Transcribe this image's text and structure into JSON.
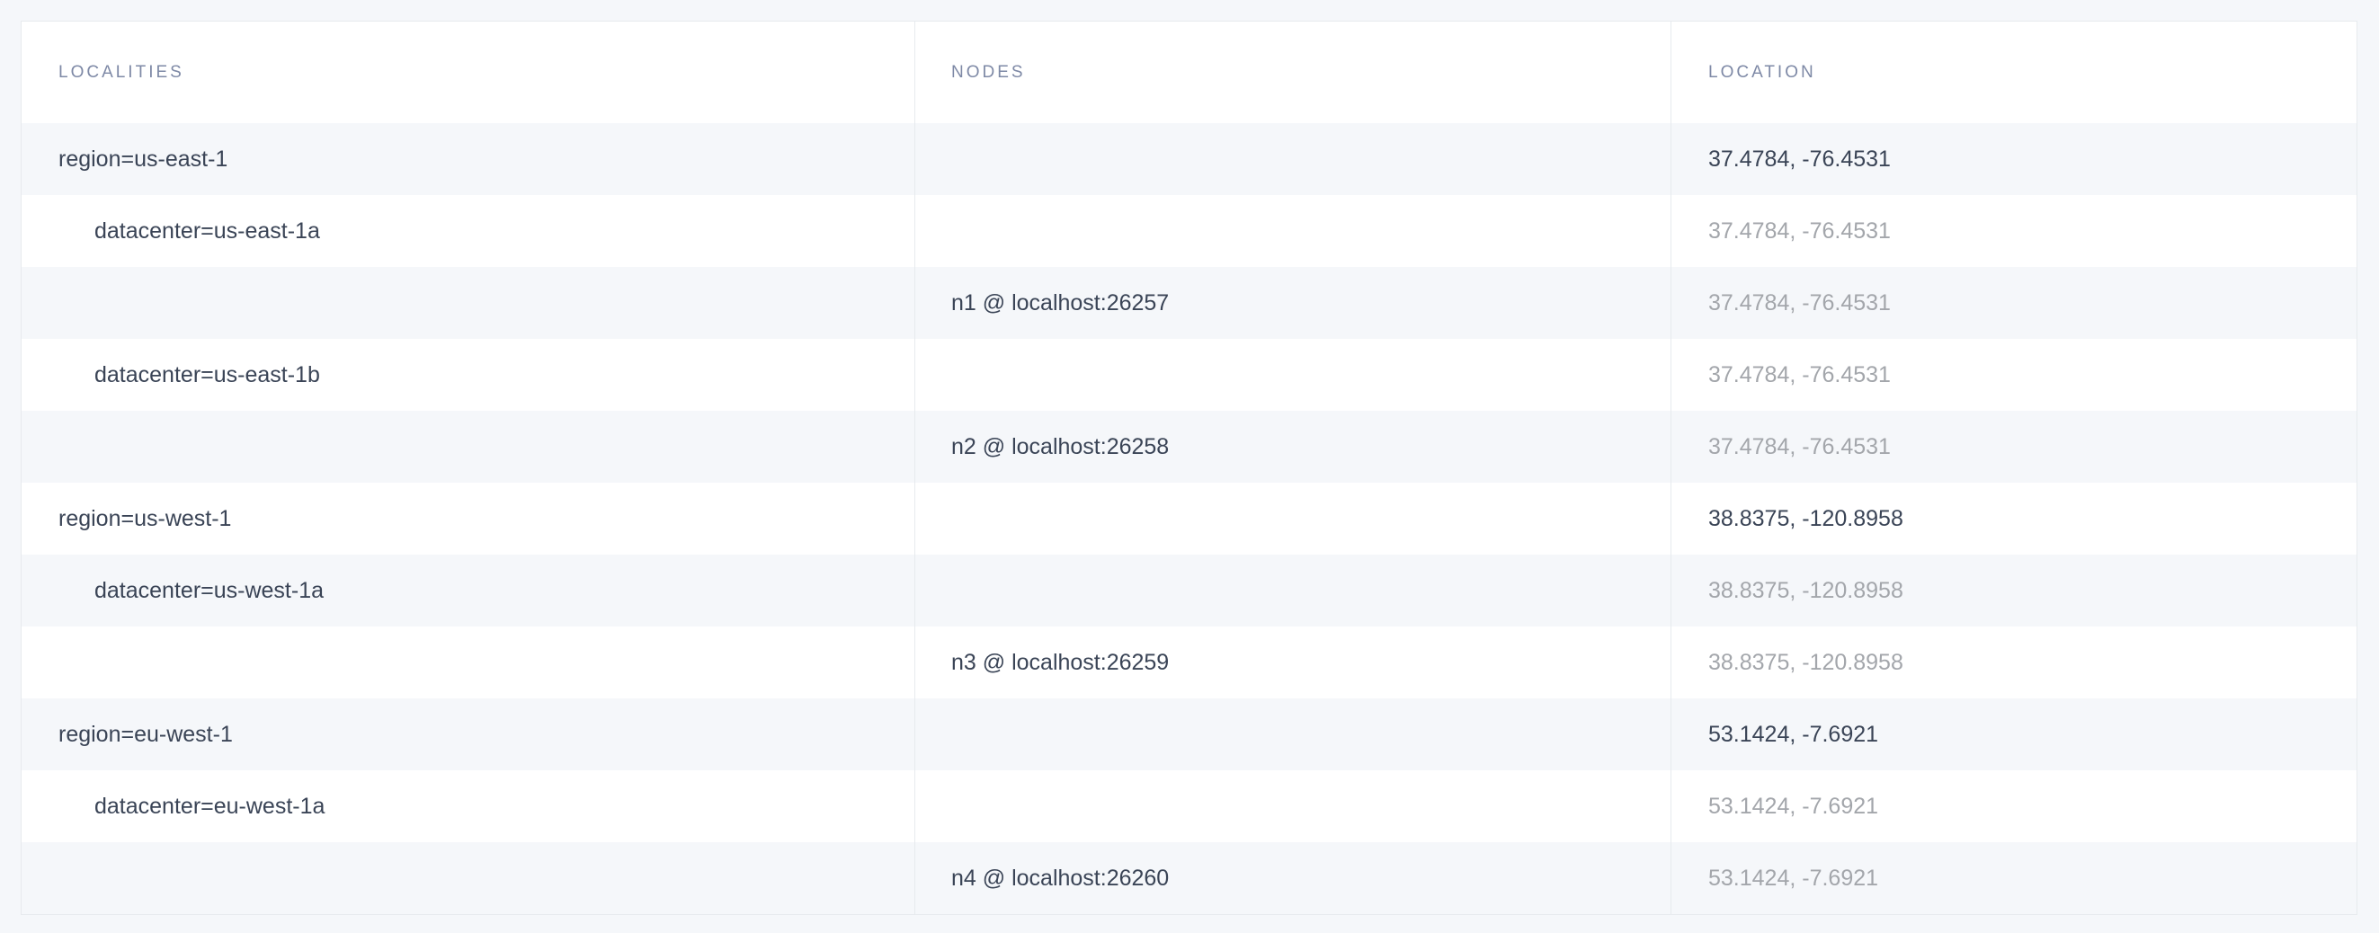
{
  "columns": [
    "LOCALITIES",
    "NODES",
    "LOCATION"
  ],
  "rows": [
    {
      "locality": "region=us-east-1",
      "level": 0,
      "node": "",
      "location": "37.4784, -76.4531",
      "muted": false
    },
    {
      "locality": "datacenter=us-east-1a",
      "level": 1,
      "node": "",
      "location": "37.4784, -76.4531",
      "muted": true
    },
    {
      "locality": "",
      "level": 2,
      "node": "n1 @ localhost:26257",
      "location": "37.4784, -76.4531",
      "muted": true
    },
    {
      "locality": "datacenter=us-east-1b",
      "level": 1,
      "node": "",
      "location": "37.4784, -76.4531",
      "muted": true
    },
    {
      "locality": "",
      "level": 2,
      "node": "n2 @ localhost:26258",
      "location": "37.4784, -76.4531",
      "muted": true
    },
    {
      "locality": "region=us-west-1",
      "level": 0,
      "node": "",
      "location": "38.8375, -120.8958",
      "muted": false
    },
    {
      "locality": "datacenter=us-west-1a",
      "level": 1,
      "node": "",
      "location": "38.8375, -120.8958",
      "muted": true
    },
    {
      "locality": "",
      "level": 2,
      "node": "n3 @ localhost:26259",
      "location": "38.8375, -120.8958",
      "muted": true
    },
    {
      "locality": "region=eu-west-1",
      "level": 0,
      "node": "",
      "location": "53.1424, -7.6921",
      "muted": false
    },
    {
      "locality": "datacenter=eu-west-1a",
      "level": 1,
      "node": "",
      "location": "53.1424, -7.6921",
      "muted": true
    },
    {
      "locality": "",
      "level": 2,
      "node": "n4 @ localhost:26260",
      "location": "53.1424, -7.6921",
      "muted": true
    }
  ],
  "colors": {
    "text": "#3a4456",
    "muted": "#a3a6ab",
    "header": "#7e89a6",
    "stripe": "#f5f7fa"
  }
}
